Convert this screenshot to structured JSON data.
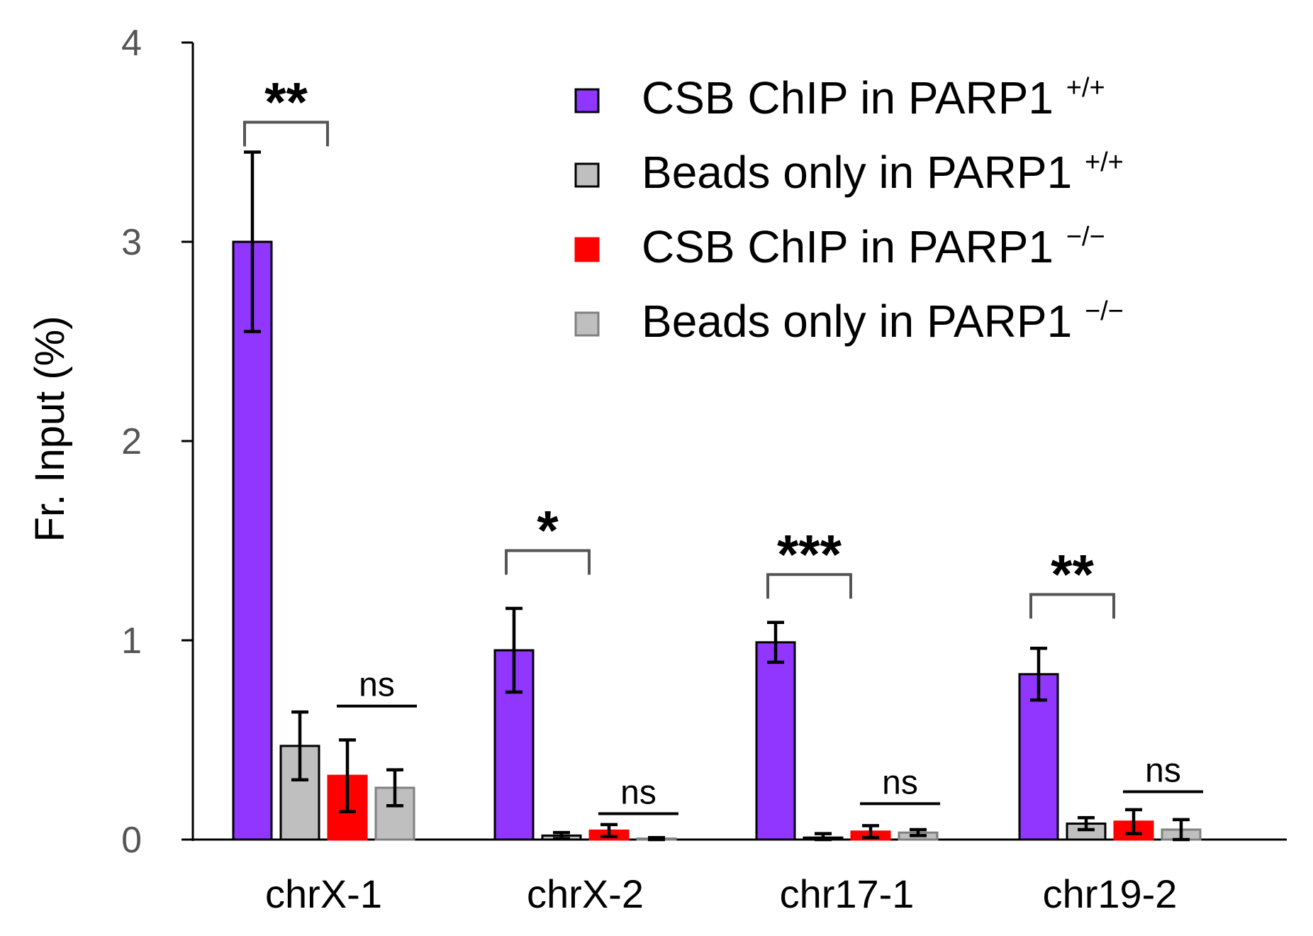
{
  "chart_data": {
    "type": "bar",
    "title": "",
    "xlabel": "",
    "ylabel": "Fr. Input (%)",
    "ylim": [
      0,
      4
    ],
    "yticks": [
      0,
      1,
      2,
      3,
      4
    ],
    "grid": false,
    "legend_position": "top-right",
    "categories": [
      "chrX-1",
      "chrX-2",
      "chr17-1",
      "chr19-2"
    ],
    "series": [
      {
        "name": "CSB ChIP in PARP1",
        "superscript": "+/+",
        "color": "#9036FF",
        "edge": "#000000",
        "values": [
          3.0,
          0.95,
          0.99,
          0.83
        ],
        "errors": [
          0.45,
          0.21,
          0.1,
          0.13
        ]
      },
      {
        "name": "Beads only in PARP1",
        "superscript": "+/+",
        "color": "#BFBFBF",
        "edge": "#000000",
        "values": [
          0.47,
          0.02,
          0.01,
          0.08
        ],
        "errors": [
          0.17,
          0.015,
          0.02,
          0.03
        ]
      },
      {
        "name": "CSB ChIP in PARP1",
        "superscript": "−/−",
        "color": "#FF0000",
        "edge": "#FF0000",
        "values": [
          0.32,
          0.045,
          0.04,
          0.09
        ],
        "errors": [
          0.18,
          0.03,
          0.03,
          0.06
        ]
      },
      {
        "name": "Beads only in PARP1",
        "superscript": "−/−",
        "color": "#BFBFBF",
        "edge": "#808080",
        "values": [
          0.26,
          0.005,
          0.035,
          0.05
        ],
        "errors": [
          0.09,
          0.005,
          0.015,
          0.05
        ]
      }
    ],
    "significance": [
      {
        "category": "chrX-1",
        "label": "**",
        "between": [
          0,
          1
        ],
        "bracket_y": 3.6
      },
      {
        "category": "chrX-1",
        "label": "ns",
        "between": [
          2,
          3
        ],
        "bracket_y": 0.67
      },
      {
        "category": "chrX-2",
        "label": "*",
        "between": [
          0,
          1
        ],
        "bracket_y": 1.45
      },
      {
        "category": "chrX-2",
        "label": "ns",
        "between": [
          2,
          3
        ],
        "bracket_y": 0.13
      },
      {
        "category": "chr17-1",
        "label": "***",
        "between": [
          0,
          1
        ],
        "bracket_y": 1.33
      },
      {
        "category": "chr17-1",
        "label": "ns",
        "between": [
          2,
          3
        ],
        "bracket_y": 0.18
      },
      {
        "category": "chr19-2",
        "label": "**",
        "between": [
          0,
          1
        ],
        "bracket_y": 1.23
      },
      {
        "category": "chr19-2",
        "label": "ns",
        "between": [
          2,
          3
        ],
        "bracket_y": 0.24
      }
    ]
  }
}
